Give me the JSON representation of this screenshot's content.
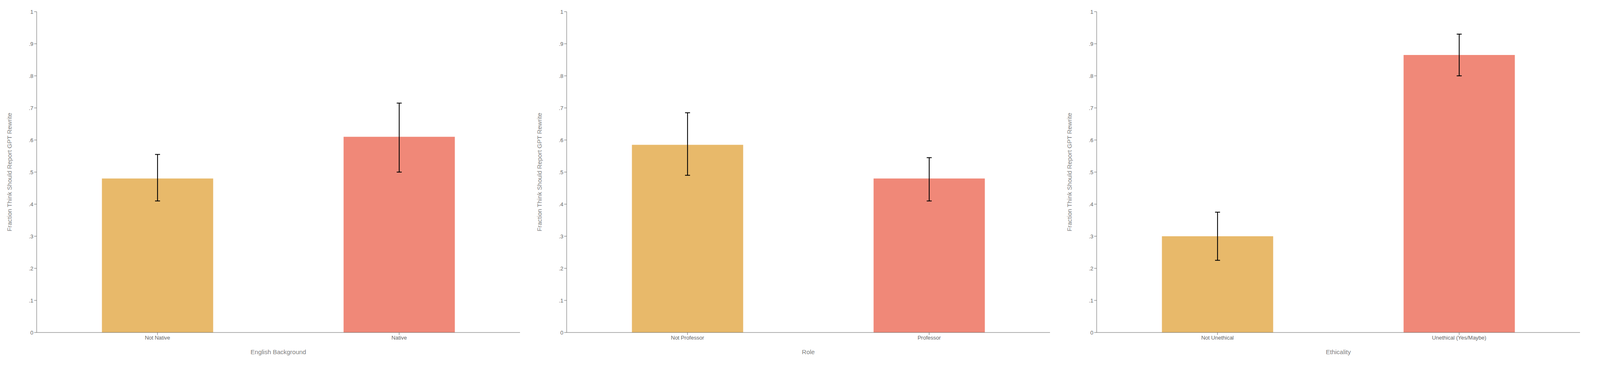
{
  "chart_data": [
    {
      "type": "bar",
      "xlabel": "English Background",
      "ylabel": "Fraction Think Should Report GPT Rewrite",
      "categories": [
        "Not Native",
        "Native"
      ],
      "values": [
        0.48,
        0.61
      ],
      "ci_lower": [
        0.41,
        0.5
      ],
      "ci_upper": [
        0.555,
        0.715
      ],
      "colors": [
        "#E8B96A",
        "#F08878"
      ],
      "ylim": [
        0,
        1.0
      ],
      "yticks": [
        0,
        {
          "value": 0.1,
          "label": ".1"
        },
        {
          "value": 0.2,
          "label": ".2"
        },
        {
          "value": 0.3,
          "label": ".3"
        },
        {
          "value": 0.4,
          "label": ".4"
        },
        {
          "value": 0.5,
          "label": ".5"
        },
        {
          "value": 0.6,
          "label": ".6"
        },
        {
          "value": 0.7,
          "label": ".7"
        },
        {
          "value": 0.8,
          "label": ".8"
        },
        {
          "value": 0.9,
          "label": ".9"
        },
        1
      ],
      "grid": false
    },
    {
      "type": "bar",
      "xlabel": "Role",
      "ylabel": "Fraction Think Should Report GPT Rewrite",
      "categories": [
        "Not Professor",
        "Professor"
      ],
      "values": [
        0.585,
        0.48
      ],
      "ci_lower": [
        0.49,
        0.41
      ],
      "ci_upper": [
        0.685,
        0.545
      ],
      "colors": [
        "#E8B96A",
        "#F08878"
      ],
      "ylim": [
        0,
        1.0
      ],
      "yticks": [
        0,
        {
          "value": 0.1,
          "label": ".1"
        },
        {
          "value": 0.2,
          "label": ".2"
        },
        {
          "value": 0.3,
          "label": ".3"
        },
        {
          "value": 0.4,
          "label": ".4"
        },
        {
          "value": 0.5,
          "label": ".5"
        },
        {
          "value": 0.6,
          "label": ".6"
        },
        {
          "value": 0.7,
          "label": ".7"
        },
        {
          "value": 0.8,
          "label": ".8"
        },
        {
          "value": 0.9,
          "label": ".9"
        },
        1
      ],
      "grid": false
    },
    {
      "type": "bar",
      "xlabel": "Ethicality",
      "ylabel": "Fraction Think Should Report GPT Rewrite",
      "categories": [
        "Not Unethical",
        "Unethical (Yes/Maybe)"
      ],
      "values": [
        0.3,
        0.865
      ],
      "ci_lower": [
        0.225,
        0.8
      ],
      "ci_upper": [
        0.375,
        0.93
      ],
      "colors": [
        "#E8B96A",
        "#F08878"
      ],
      "ylim": [
        0,
        1.0
      ],
      "yticks": [
        0,
        {
          "value": 0.1,
          "label": ".1"
        },
        {
          "value": 0.2,
          "label": ".2"
        },
        {
          "value": 0.3,
          "label": ".3"
        },
        {
          "value": 0.4,
          "label": ".4"
        },
        {
          "value": 0.5,
          "label": ".5"
        },
        {
          "value": 0.6,
          "label": ".6"
        },
        {
          "value": 0.7,
          "label": ".7"
        },
        {
          "value": 0.8,
          "label": ".8"
        },
        {
          "value": 0.9,
          "label": ".9"
        },
        1
      ],
      "grid": false
    }
  ]
}
